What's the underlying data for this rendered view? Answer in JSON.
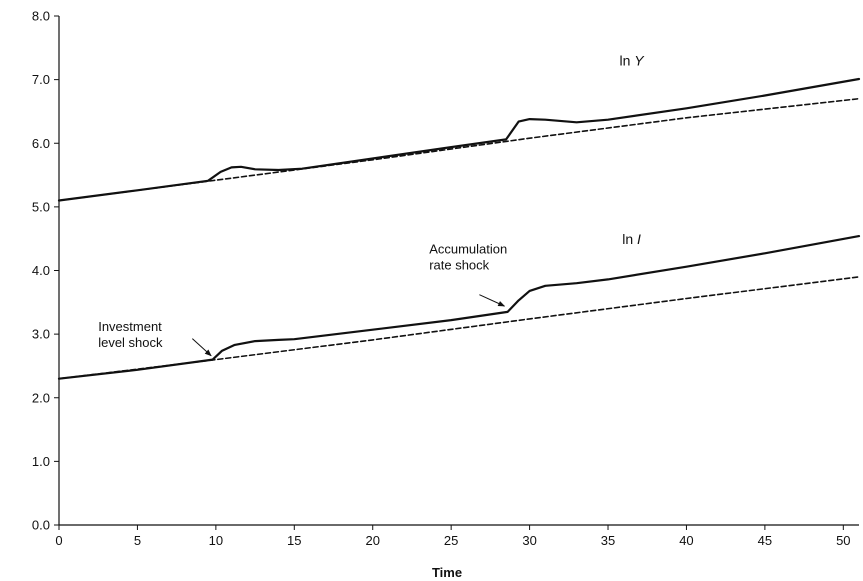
{
  "chart_data": {
    "type": "line",
    "title": "",
    "xlabel": "Time",
    "ylabel": "",
    "xlim": [
      0,
      51
    ],
    "ylim": [
      0,
      8
    ],
    "x_ticks": [
      0,
      5,
      10,
      15,
      20,
      25,
      30,
      35,
      40,
      45,
      50
    ],
    "x_tick_labels": [
      "0",
      "5",
      "10",
      "15",
      "20",
      "25",
      "30",
      "35",
      "40",
      "45",
      "50"
    ],
    "y_ticks": [
      0,
      1,
      2,
      3,
      4,
      5,
      6,
      7,
      8
    ],
    "y_tick_labels": [
      "0.0",
      "1.0",
      "2.0",
      "3.0",
      "4.0",
      "5.0",
      "6.0",
      "7.0",
      "8.0"
    ],
    "grid": false,
    "series_labels": [
      {
        "prefix": "ln ",
        "var": "Y",
        "x": 36.5,
        "y": 7.22
      },
      {
        "prefix": "ln ",
        "var": "I",
        "x": 36.5,
        "y": 4.42
      }
    ],
    "series": [
      {
        "style": "solid",
        "points": [
          [
            0,
            5.1
          ],
          [
            5,
            5.26
          ],
          [
            9.5,
            5.41
          ],
          [
            10.3,
            5.55
          ],
          [
            11,
            5.62
          ],
          [
            11.6,
            5.63
          ],
          [
            12.5,
            5.59
          ],
          [
            14,
            5.58
          ],
          [
            15.5,
            5.6
          ],
          [
            20,
            5.76
          ],
          [
            25,
            5.94
          ],
          [
            28.5,
            6.06
          ],
          [
            29.3,
            6.34
          ],
          [
            30,
            6.38
          ],
          [
            31,
            6.37
          ],
          [
            33,
            6.33
          ],
          [
            35,
            6.37
          ],
          [
            40,
            6.55
          ],
          [
            45,
            6.75
          ],
          [
            51,
            7.01
          ]
        ]
      },
      {
        "style": "dashed",
        "points": [
          [
            0,
            5.1
          ],
          [
            10,
            5.42
          ],
          [
            20,
            5.74
          ],
          [
            30,
            6.08
          ],
          [
            40,
            6.4
          ],
          [
            51,
            6.7
          ]
        ]
      },
      {
        "style": "solid",
        "points": [
          [
            0,
            2.3
          ],
          [
            5,
            2.44
          ],
          [
            9.8,
            2.6
          ],
          [
            10.4,
            2.74
          ],
          [
            11.2,
            2.83
          ],
          [
            12.5,
            2.89
          ],
          [
            14,
            2.91
          ],
          [
            15,
            2.92
          ],
          [
            20,
            3.07
          ],
          [
            25,
            3.22
          ],
          [
            28.6,
            3.35
          ],
          [
            29.3,
            3.53
          ],
          [
            30,
            3.68
          ],
          [
            31,
            3.76
          ],
          [
            33,
            3.8
          ],
          [
            35,
            3.86
          ],
          [
            40,
            4.06
          ],
          [
            45,
            4.27
          ],
          [
            51,
            4.54
          ]
        ]
      },
      {
        "style": "dashed",
        "points": [
          [
            0,
            2.3
          ],
          [
            10,
            2.6
          ],
          [
            20,
            2.91
          ],
          [
            30,
            3.24
          ],
          [
            40,
            3.56
          ],
          [
            51,
            3.9
          ]
        ]
      }
    ],
    "annotations": [
      {
        "lines": [
          "Accumulation",
          "rate shock"
        ],
        "text_x": 23.6,
        "text_y": 4.27,
        "arrow_from": [
          26.8,
          3.62
        ],
        "arrow_to": [
          28.4,
          3.44
        ]
      },
      {
        "lines": [
          "Investment",
          "level shock"
        ],
        "text_x": 2.5,
        "text_y": 3.05,
        "arrow_from": [
          8.5,
          2.93
        ],
        "arrow_to": [
          9.7,
          2.66
        ]
      }
    ]
  }
}
